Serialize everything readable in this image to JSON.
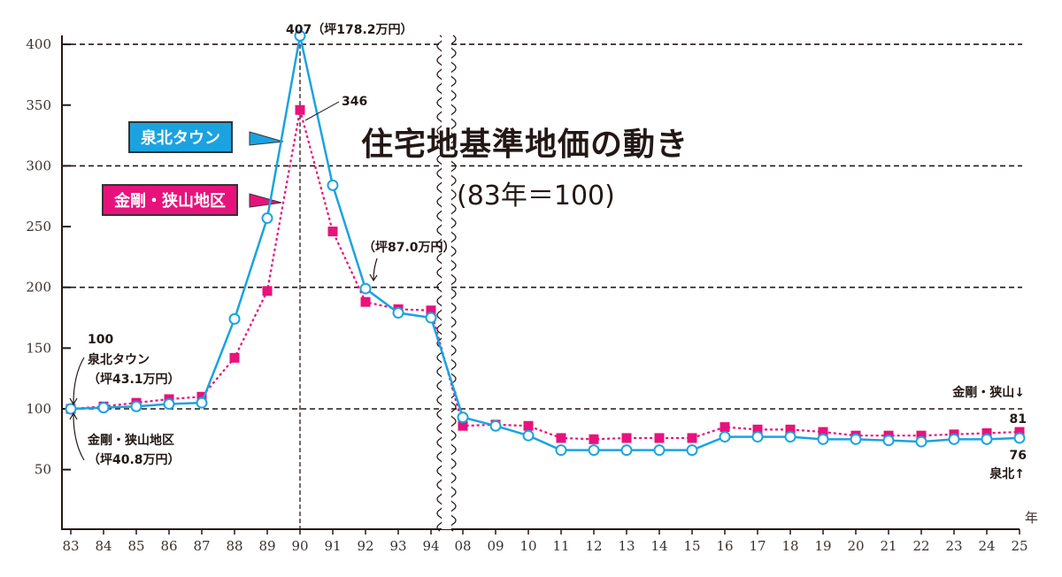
{
  "chart_data": {
    "type": "line",
    "title": "住宅地基準地価の動き",
    "subtitle": "(83年＝100)",
    "xlabel": "年",
    "ylabel": "",
    "ylim": [
      0,
      400
    ],
    "yticks": [
      50,
      100,
      150,
      200,
      250,
      300,
      350,
      400
    ],
    "grid_lines": [
      100,
      200,
      300,
      400
    ],
    "axis_break": "94-08",
    "categories": [
      "83",
      "84",
      "85",
      "86",
      "87",
      "88",
      "89",
      "90",
      "91",
      "92",
      "93",
      "94",
      "08",
      "09",
      "10",
      "11",
      "12",
      "13",
      "14",
      "15",
      "16",
      "17",
      "18",
      "19",
      "20",
      "21",
      "22",
      "23",
      "24",
      "25"
    ],
    "series": [
      {
        "name": "泉北タウン",
        "color": "#1aa3e0",
        "marker": "open-circle",
        "line": "solid",
        "values": [
          100,
          101,
          102,
          104,
          105,
          174,
          257,
          407,
          284,
          199,
          179,
          175,
          93,
          86,
          78,
          66,
          66,
          66,
          66,
          66,
          77,
          77,
          77,
          75,
          75,
          74,
          73,
          75,
          75,
          76
        ]
      },
      {
        "name": "金剛・狭山地区",
        "color": "#e8127c",
        "marker": "square",
        "line": "dotted",
        "values": [
          100,
          102,
          105,
          108,
          110,
          142,
          197,
          346,
          246,
          188,
          182,
          181,
          86,
          87,
          86,
          76,
          75,
          76,
          76,
          76,
          85,
          83,
          83,
          81,
          78,
          78,
          78,
          79,
          80,
          81
        ]
      }
    ],
    "legend_placement": "inside-top-left",
    "annotations": {
      "peak_senboku": "407（坪178.2万円）",
      "peak_kongo": "346",
      "senboku_92": "（坪87.0万円）",
      "base_value": "100",
      "base_senboku_name": "泉北タウン",
      "base_senboku_price": "（坪43.1万円）",
      "base_kongo_name": "金剛・狭山地区",
      "base_kongo_price": "（坪40.8万円）",
      "end_kongo_name": "金剛・狭山↓",
      "end_kongo_value": "81",
      "end_senboku_value": "76",
      "end_senboku_name": "泉北↑"
    }
  }
}
